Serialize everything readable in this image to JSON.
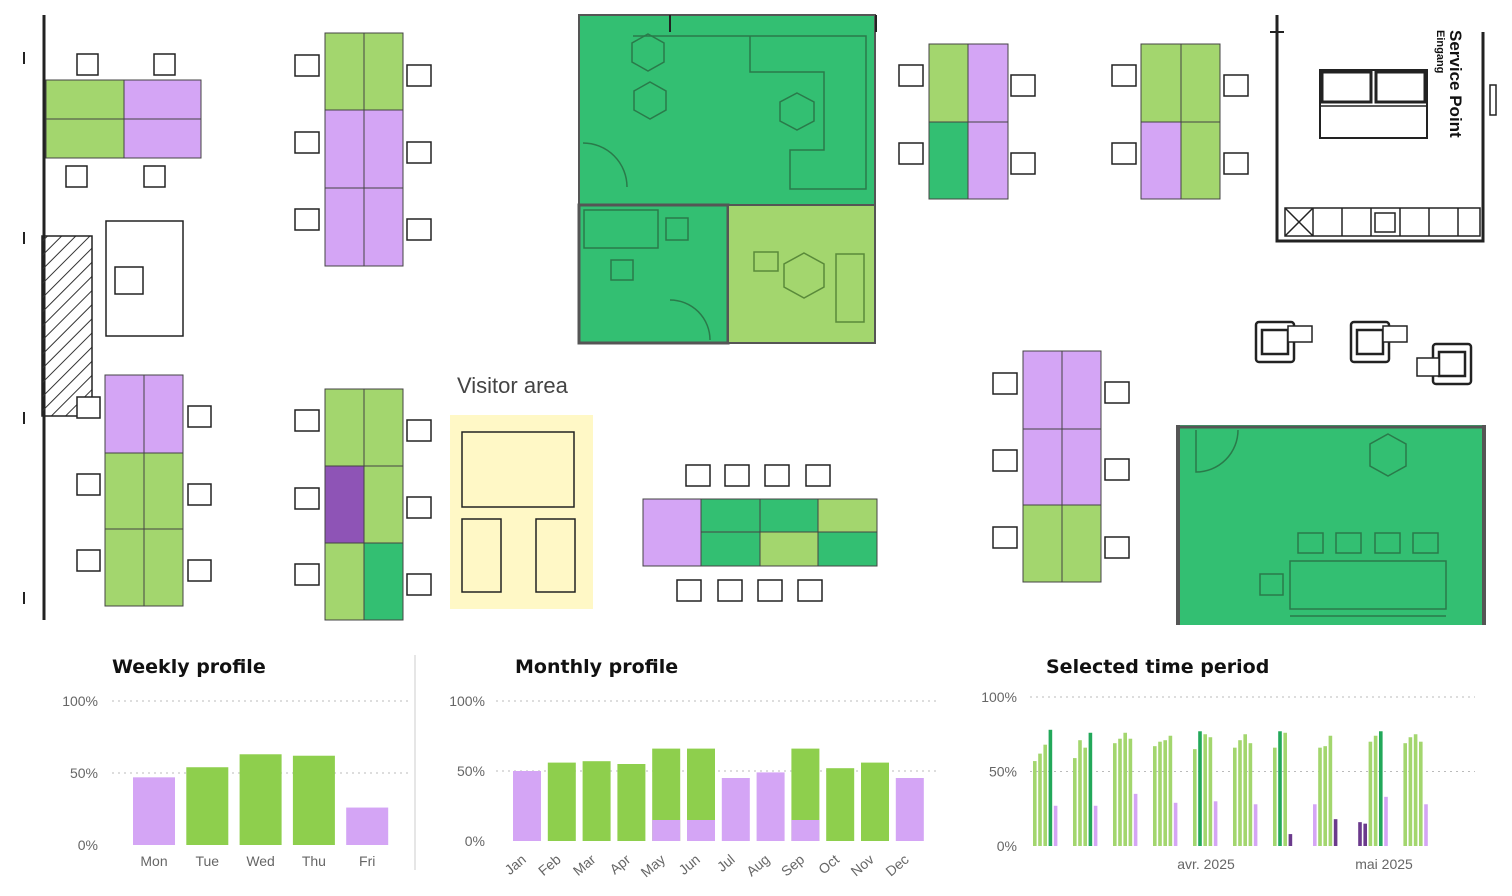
{
  "colors": {
    "light_green": "#a3d66e",
    "bright_green": "#8ecf4d",
    "green": "#33bf72",
    "lavender": "#d4a5f5",
    "purple": "#8e54b6",
    "dark_purple": "#6b3a8c",
    "visitor_yellow": "#fff8c6",
    "line": "#222222"
  },
  "floorplan": {
    "visitor_area_label": "Visitor area",
    "service_point_label": "Service Point",
    "service_point_sublabel": "Eingang"
  },
  "charts": {
    "weekly": {
      "title": "Weekly profile",
      "y_ticks": [
        "100%",
        "50%",
        "0%"
      ]
    },
    "monthly": {
      "title": "Monthly profile",
      "y_ticks": [
        "100%",
        "50%",
        "0%"
      ]
    },
    "period": {
      "title": "Selected time period",
      "y_ticks": [
        "100%",
        "50%",
        "0%"
      ],
      "x_labels": [
        "avr. 2025",
        "mai 2025"
      ]
    }
  },
  "chart_data": [
    {
      "type": "bar",
      "title": "Weekly profile",
      "categories": [
        "Mon",
        "Tue",
        "Wed",
        "Thu",
        "Fri"
      ],
      "values": [
        47,
        54,
        63,
        62,
        26
      ],
      "bar_colors": [
        "#d4a5f5",
        "#8ecf4d",
        "#8ecf4d",
        "#8ecf4d",
        "#d4a5f5"
      ],
      "ylim": [
        0,
        100
      ],
      "grid": true
    },
    {
      "type": "bar",
      "title": "Monthly profile",
      "categories": [
        "Jan",
        "Feb",
        "Mar",
        "Apr",
        "May",
        "Jun",
        "Jul",
        "Aug",
        "Sep",
        "Oct",
        "Nov",
        "Dec"
      ],
      "values": [
        50,
        56,
        57,
        55,
        66,
        66,
        45,
        49,
        66,
        52,
        56,
        45
      ],
      "bar_colors": [
        "#d4a5f5",
        "#8ecf4d",
        "#8ecf4d",
        "#8ecf4d",
        "#8ecf4d",
        "#8ecf4d",
        "#d4a5f5",
        "#d4a5f5",
        "#8ecf4d",
        "#8ecf4d",
        "#8ecf4d",
        "#d4a5f5"
      ],
      "lower_segment": [
        0,
        0,
        0,
        0,
        15,
        15,
        0,
        0,
        15,
        0,
        0,
        0
      ],
      "ylim": [
        0,
        100
      ],
      "grid": true
    },
    {
      "type": "bar",
      "title": "Selected time period",
      "x_labels": [
        "avr. 2025",
        "mai 2025"
      ],
      "ylim": [
        0,
        100
      ],
      "grid": true,
      "weeks": [
        {
          "values": [
            57,
            62,
            68,
            78
          ],
          "colors": [
            "#a3d66e",
            "#a3d66e",
            "#a3d66e",
            "#22a85a"
          ],
          "lav": 27
        },
        {
          "values": [
            59,
            71,
            66,
            76
          ],
          "colors": [
            "#a3d66e",
            "#a3d66e",
            "#a3d66e",
            "#22a85a"
          ],
          "lav": 27
        },
        {
          "values": [
            69,
            72,
            76,
            72
          ],
          "colors": [
            "#a3d66e",
            "#a3d66e",
            "#a3d66e",
            "#a3d66e"
          ],
          "lav": 35
        },
        {
          "values": [
            67,
            70,
            71,
            74
          ],
          "colors": [
            "#a3d66e",
            "#a3d66e",
            "#a3d66e",
            "#a3d66e"
          ],
          "lav": 29
        },
        {
          "values": [
            65,
            77,
            75,
            73
          ],
          "colors": [
            "#a3d66e",
            "#22a85a",
            "#a3d66e",
            "#a3d66e"
          ],
          "lav": 30
        },
        {
          "values": [
            66,
            71,
            75,
            69
          ],
          "colors": [
            "#a3d66e",
            "#a3d66e",
            "#a3d66e",
            "#a3d66e"
          ],
          "lav": 28
        },
        {
          "values": [
            66,
            77,
            76,
            8
          ],
          "colors": [
            "#a3d66e",
            "#22a85a",
            "#a3d66e",
            "#6b3a8c"
          ],
          "lav": 0
        },
        {
          "values": [
            28,
            66,
            67,
            74,
            18
          ],
          "colors": [
            "#d4a5f5",
            "#a3d66e",
            "#a3d66e",
            "#a3d66e",
            "#6b3a8c"
          ],
          "lav": 0
        },
        {
          "values": [
            16,
            15,
            70,
            74,
            77
          ],
          "colors": [
            "#6b3a8c",
            "#6b3a8c",
            "#a3d66e",
            "#a3d66e",
            "#22a85a"
          ],
          "lav": 33
        },
        {
          "values": [
            69,
            73,
            75,
            70
          ],
          "colors": [
            "#a3d66e",
            "#a3d66e",
            "#a3d66e",
            "#a3d66e"
          ],
          "lav": 28
        }
      ]
    }
  ]
}
